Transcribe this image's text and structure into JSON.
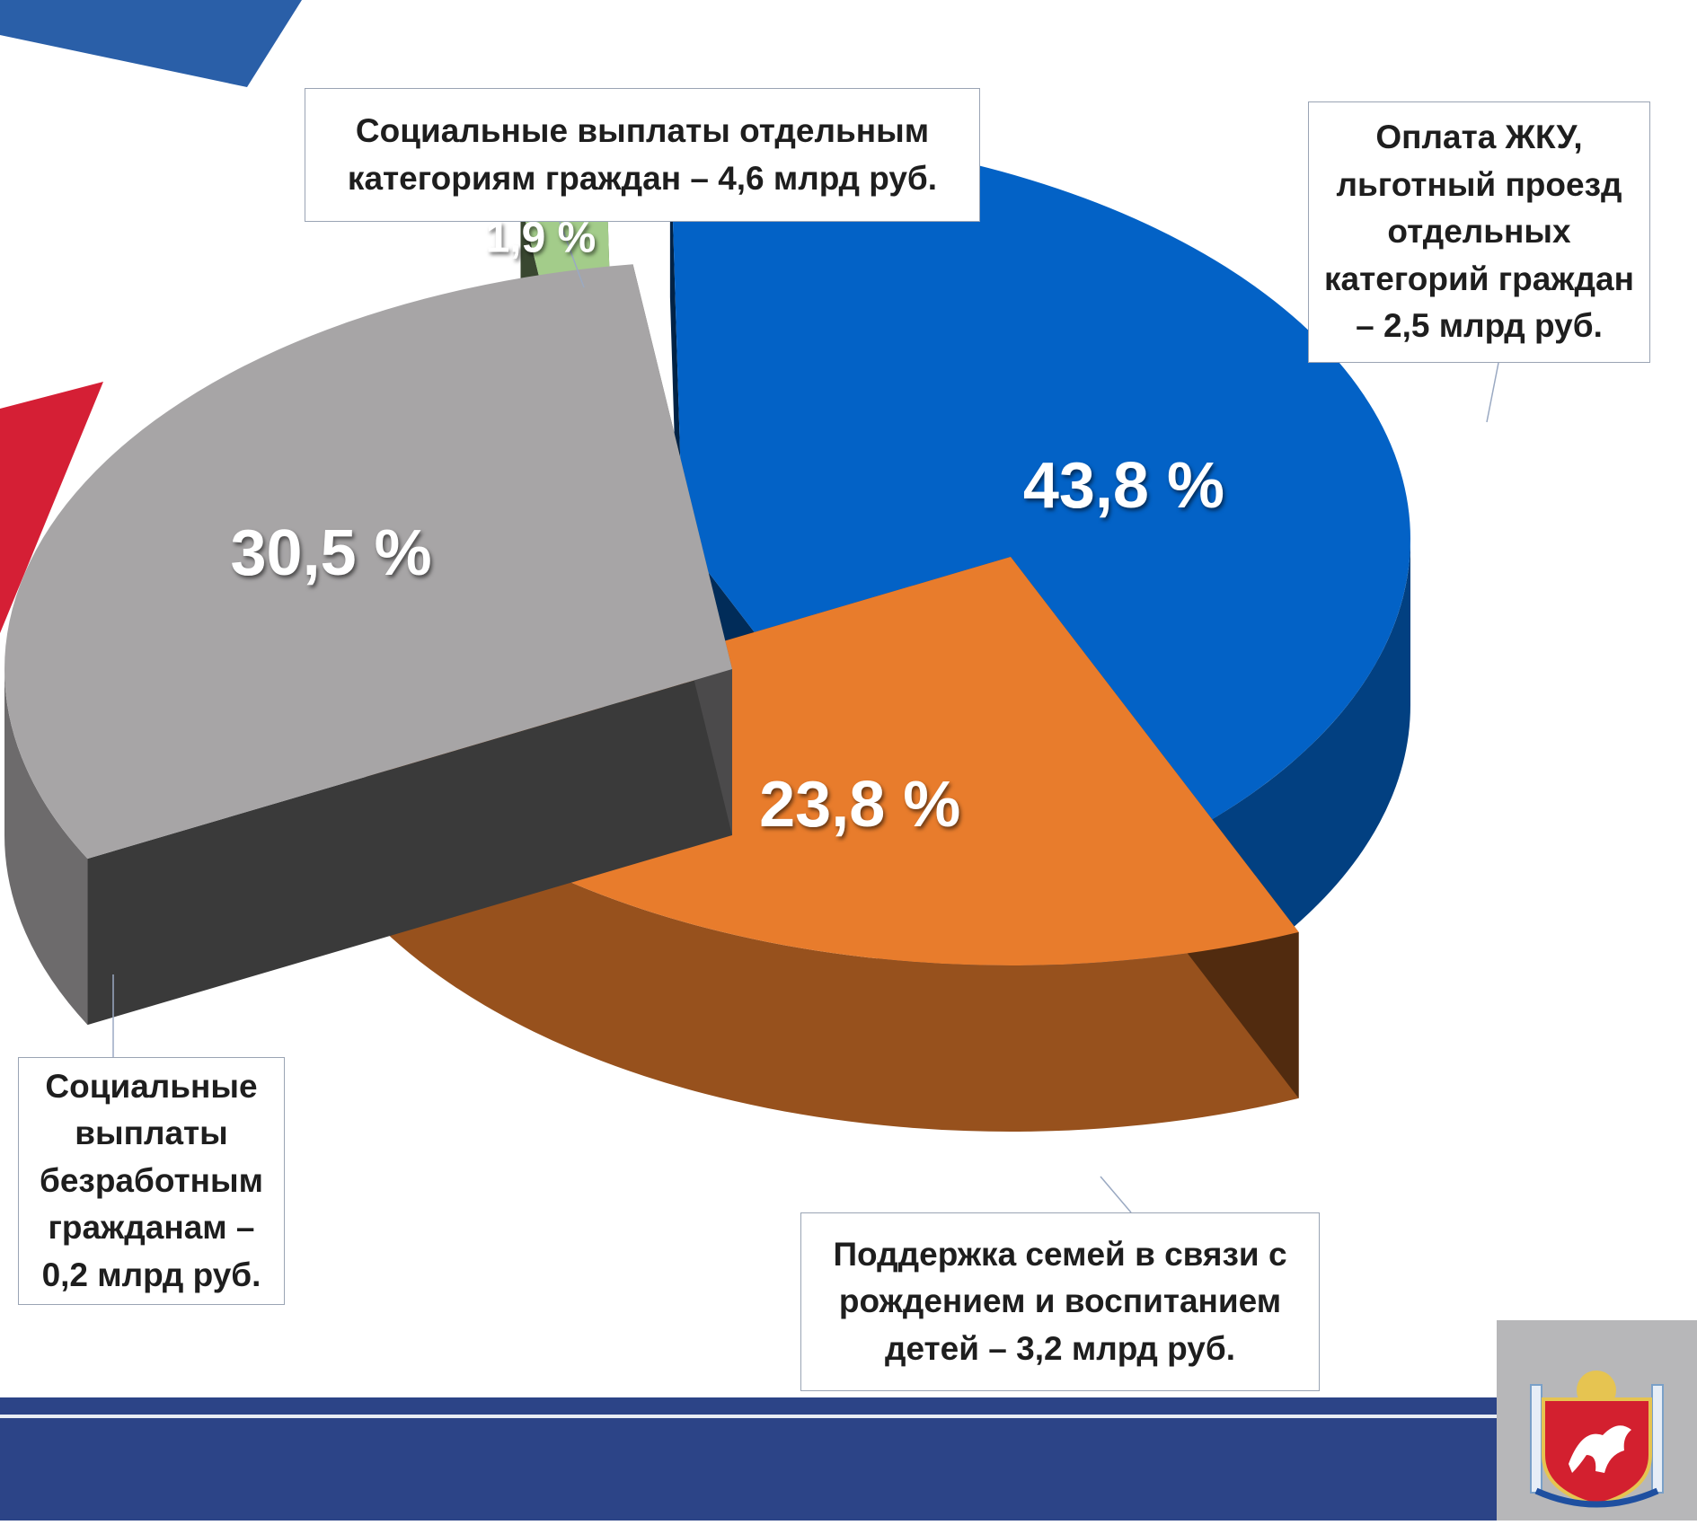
{
  "chart_data": {
    "type": "pie",
    "variant": "3d-exploded",
    "slices": [
      {
        "key": "social",
        "value": 43.8,
        "label": "43,8 %",
        "color": "#0362c6",
        "callout": "Социальные выплаты отдельным категориям граждан – 4,6 млрд руб."
      },
      {
        "key": "housing",
        "value": 23.8,
        "label": "23,8 %",
        "color": "#e87c2c",
        "callout": "Оплата ЖКУ, льготный проезд отдельных категорий граждан – 2,5 млрд руб."
      },
      {
        "key": "families",
        "value": 30.5,
        "label": "30,5 %",
        "color": "#a7a5a6",
        "callout": "Поддержка семей в связи с рождением и воспитанием детей – 3,2 млрд руб."
      },
      {
        "key": "unemployed",
        "value": 1.9,
        "label": "1,9 %",
        "color": "#a3cc8a",
        "callout": "Социальные выплаты безработным гражданам – 0,2 млрд руб."
      }
    ]
  },
  "decor": {
    "bottom_bar_color": "#2c4487",
    "blue_triangle_color": "#2a5fa8",
    "red_triangle_color": "#d51f35",
    "logo_icon": "crimea-coat-of-arms-icon"
  }
}
